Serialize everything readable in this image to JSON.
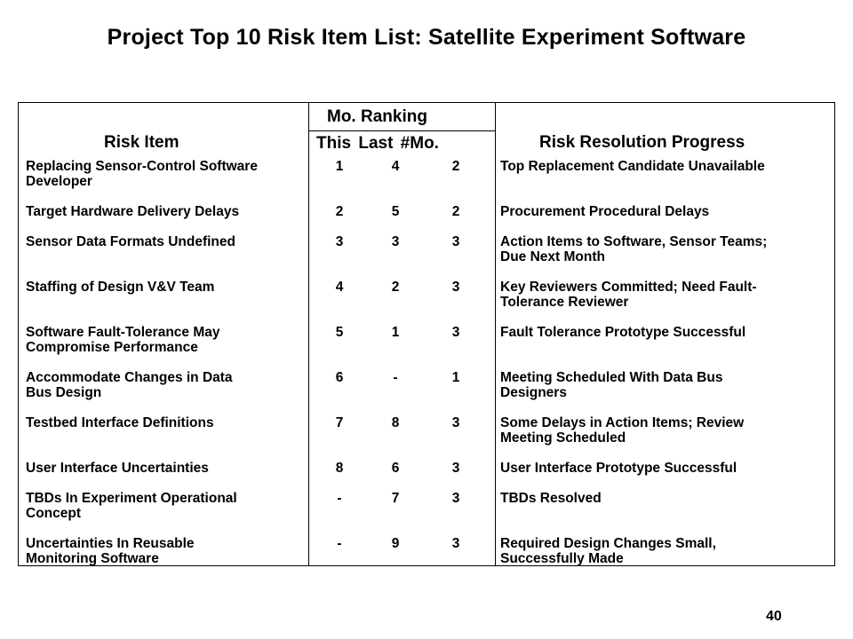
{
  "slide": {
    "title": "Project Top 10 Risk Item List: Satellite Experiment Software",
    "page_number": "40"
  },
  "table": {
    "header": {
      "risk_item": "Risk Item",
      "mo_ranking": "Mo. Ranking",
      "sub_cols": "This  Last  #Mo.",
      "progress": "Risk Resolution Progress"
    },
    "rows": [
      {
        "item": "Replacing Sensor-Control Software\nDeveloper",
        "this": "1",
        "last": "4",
        "mo": "2",
        "progress": "Top Replacement Candidate Unavailable"
      },
      {
        "item": "Target Hardware Delivery Delays",
        "this": "2",
        "last": "5",
        "mo": "2",
        "progress": "Procurement Procedural Delays"
      },
      {
        "item": "Sensor Data Formats Undefined",
        "this": "3",
        "last": "3",
        "mo": "3",
        "progress": "Action Items to Software, Sensor Teams;\n Due Next Month"
      },
      {
        "item": "Staffing of Design V&V Team",
        "this": "4",
        "last": "2",
        "mo": "3",
        "progress": "Key Reviewers Committed; Need Fault-\n Tolerance Reviewer"
      },
      {
        "item": "Software Fault-Tolerance May\nCompromise Performance",
        "this": "5",
        "last": "1",
        "mo": "3",
        "progress": "Fault Tolerance Prototype Successful"
      },
      {
        "item": "Accommodate Changes in Data\nBus Design",
        "this": "6",
        "last": "-",
        "mo": "1",
        "progress": "Meeting Scheduled With Data Bus\n Designers"
      },
      {
        "item": "Testbed Interface Definitions",
        "this": "7",
        "last": "8",
        "mo": "3",
        "progress": "Some Delays in Action Items; Review\n Meeting Scheduled"
      },
      {
        "item": "User Interface Uncertainties",
        "this": "8",
        "last": "6",
        "mo": "3",
        "progress": "User Interface Prototype Successful"
      },
      {
        "item": "TBDs In Experiment Operational\nConcept",
        "this": "-",
        "last": "7",
        "mo": "3",
        "progress": "TBDs Resolved"
      },
      {
        "item": "Uncertainties In Reusable\nMonitoring Software",
        "this": "-",
        "last": "9",
        "mo": "3",
        "progress": "Required Design Changes Small,\n Successfully Made"
      }
    ]
  }
}
